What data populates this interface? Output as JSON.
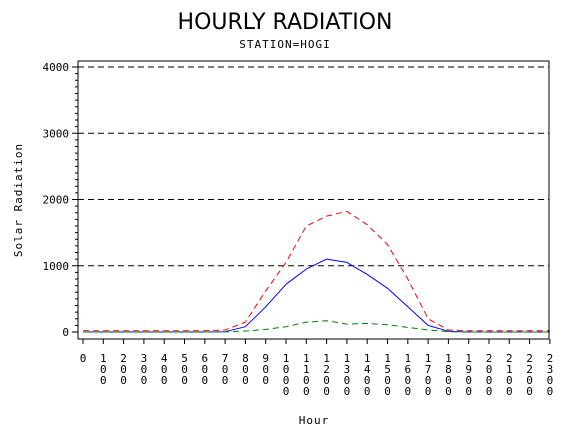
{
  "chart_data": {
    "type": "line",
    "title": "HOURLY RADIATION",
    "subtitle": "STATION=HOGI",
    "xlabel": "Hour",
    "ylabel": "Solar Radiation",
    "x": [
      0,
      100,
      200,
      300,
      400,
      500,
      600,
      700,
      800,
      900,
      1000,
      1100,
      1200,
      1300,
      1400,
      1500,
      1600,
      1700,
      1800,
      1900,
      2000,
      2100,
      2200,
      2300
    ],
    "x_tick_labels": [
      "0",
      "100",
      "200",
      "300",
      "400",
      "500",
      "600",
      "700",
      "800",
      "900",
      "1000",
      "1100",
      "1200",
      "1300",
      "1400",
      "1500",
      "1600",
      "1700",
      "1800",
      "1900",
      "2000",
      "2100",
      "2200",
      "2300"
    ],
    "ylim": [
      0,
      4000
    ],
    "y_ticks": [
      0,
      1000,
      2000,
      3000,
      4000
    ],
    "y_tick_labels": [
      "0",
      "1000",
      "2000",
      "3000",
      "4000"
    ],
    "grid": "horizontal dashed",
    "series": [
      {
        "color": "#0000ff",
        "dash": "solid",
        "values": [
          0,
          0,
          0,
          0,
          0,
          0,
          0,
          5,
          80,
          380,
          720,
          950,
          1100,
          1050,
          870,
          660,
          380,
          100,
          10,
          0,
          0,
          0,
          0,
          0
        ]
      },
      {
        "color": "#ff0000",
        "dash": "dashed",
        "values": [
          20,
          20,
          20,
          20,
          20,
          20,
          20,
          30,
          150,
          620,
          1050,
          1600,
          1750,
          1820,
          1620,
          1320,
          800,
          200,
          30,
          20,
          20,
          20,
          20,
          20
        ]
      },
      {
        "color": "#008000",
        "dash": "dashed",
        "values": [
          0,
          0,
          0,
          0,
          0,
          0,
          0,
          2,
          15,
          40,
          80,
          150,
          170,
          120,
          130,
          110,
          70,
          30,
          5,
          0,
          0,
          0,
          0,
          0
        ]
      }
    ]
  }
}
